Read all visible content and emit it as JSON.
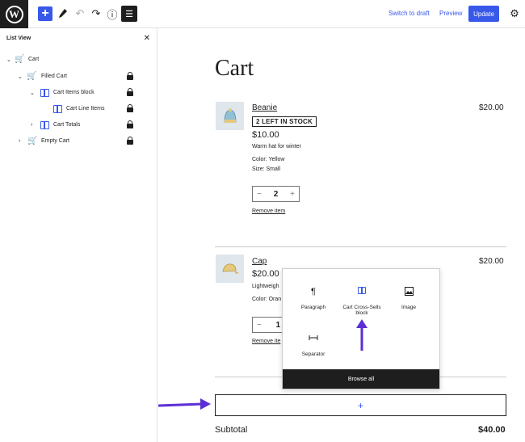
{
  "topbar": {
    "logo": "W",
    "add_icon": "+",
    "tools_icon": "pencil-icon",
    "undo_icon": "↶",
    "redo_icon": "↷",
    "info_icon": "ⓘ",
    "list_view_icon": "☰",
    "switch_to_draft": "Switch to draft",
    "preview": "Preview",
    "update": "Update",
    "settings_icon": "⚙"
  },
  "sidebar": {
    "title": "List View",
    "close": "✕",
    "items": [
      {
        "label": "Cart",
        "chevron": "⌄",
        "icon": "cart-icon",
        "locked": false
      },
      {
        "label": "Filled Cart",
        "chevron": "⌄",
        "icon": "filled-cart-icon",
        "locked": true
      },
      {
        "label": "Cart Items block",
        "chevron": "⌄",
        "icon": "block-icon",
        "locked": true
      },
      {
        "label": "Cart Line Items",
        "chevron": "",
        "icon": "block-icon",
        "locked": true
      },
      {
        "label": "Cart Totals",
        "chevron": "›",
        "icon": "block-icon",
        "locked": true
      },
      {
        "label": "Empty Cart",
        "chevron": "›",
        "icon": "empty-cart-icon",
        "locked": true
      }
    ]
  },
  "canvas": {
    "title": "Cart",
    "products": [
      {
        "name": "Beanie",
        "total": "$20.00",
        "badge": "2 LEFT IN STOCK",
        "unit_price": "$10.00",
        "description": "Warm hat for winter",
        "color": "Color: Yellow",
        "size": "Size: Small",
        "qty_minus": "−",
        "quantity": "2",
        "qty_plus": "+",
        "remove": "Remove item"
      },
      {
        "name": "Cap",
        "total": "$20.00",
        "unit_price": "$20.00",
        "description": "Lightweigh",
        "color": "Color: Oran",
        "qty_minus": "−",
        "quantity": "1",
        "remove": "Remove ite"
      }
    ],
    "appender": "+",
    "subtotal_label": "Subtotal",
    "subtotal_value": "$40.00"
  },
  "inserter": {
    "items": [
      {
        "label": "Paragraph",
        "icon": "¶"
      },
      {
        "label": "Cart Cross-Sells block",
        "icon": "block-icon"
      },
      {
        "label": "Image",
        "icon": "image-icon"
      },
      {
        "label": "Separator",
        "icon": "separator-icon"
      }
    ],
    "browse_all": "Browse all"
  },
  "colors": {
    "accent": "#3858e9",
    "annotation_arrow": "#5b2fd6",
    "dark": "#1e1e1e"
  }
}
